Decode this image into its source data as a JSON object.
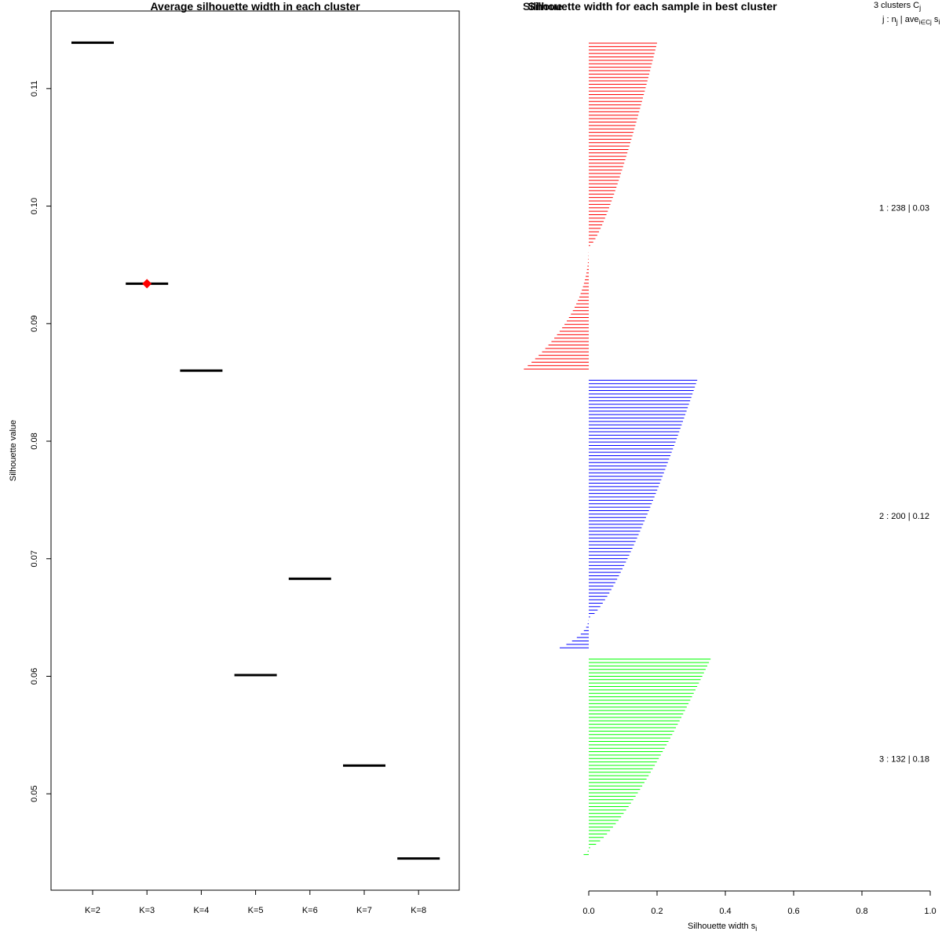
{
  "chart_data": [
    {
      "type": "scatter",
      "title": "Average silhouette width in each cluster",
      "xlabel": "",
      "ylabel": "Silhouette value",
      "categories": [
        "K=2",
        "K=3",
        "K=4",
        "K=5",
        "K=6",
        "K=7",
        "K=8"
      ],
      "values": [
        0.1139,
        0.0934,
        0.086,
        0.0601,
        0.0683,
        0.0524,
        0.0445
      ],
      "ylim": [
        0.0418,
        0.1166
      ],
      "yticks": [
        "0.05",
        "0.06",
        "0.07",
        "0.08",
        "0.09",
        "0.10",
        "0.11"
      ],
      "highlight_index": 1,
      "highlight_color": "#ff0000",
      "line_color": "#000000"
    },
    {
      "type": "bar",
      "orientation": "horizontal",
      "title": "Silhouette width for each sample in best cluster",
      "overlap_title": "Silhoue",
      "xlabel": "Silhouette width s",
      "xlabel_sub": "i",
      "xticks": [
        "0.0",
        "0.2",
        "0.4",
        "0.6",
        "0.8",
        "1.0"
      ],
      "xlim": [
        0,
        1
      ],
      "header_line1": "3  clusters  C",
      "header_line1_sub": "j",
      "header_line2": "j :  n",
      "header_line2_sub": "j",
      "header_line2_rest": " | ave",
      "header_line2_sub2": "i∈Cj",
      "header_line2_tail": "  s",
      "header_line2_tail_sub": "i",
      "series": [
        {
          "name": "1",
          "label": "1 :  238  |  0.03",
          "color": "#ff0000",
          "positive_max": 0.2,
          "negative_max": -0.19,
          "n_positive": 60,
          "n_negative": 36
        },
        {
          "name": "2",
          "label": "2 :  200  |  0.12",
          "color": "#0000ff",
          "positive_max": 0.32,
          "negative_max": -0.085,
          "n_positive": 70,
          "n_negative": 9
        },
        {
          "name": "3",
          "label": "3 :  132  |  0.18",
          "color": "#00ff00",
          "positive_max": 0.36,
          "negative_max": -0.015,
          "n_positive": 56,
          "n_negative": 2
        }
      ]
    }
  ]
}
